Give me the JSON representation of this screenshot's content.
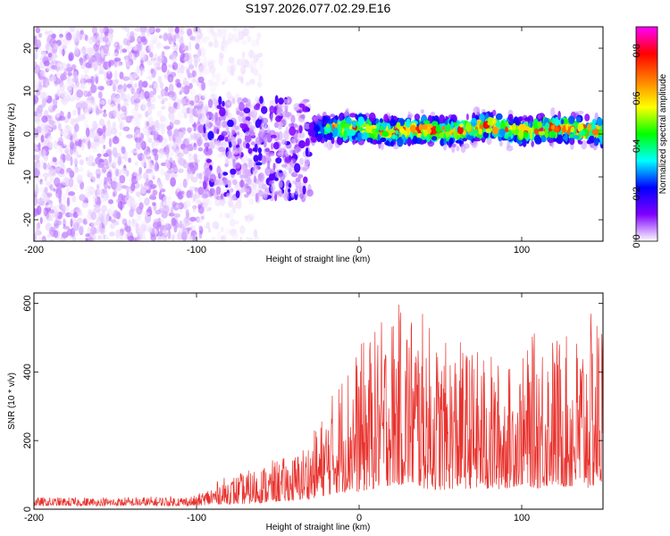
{
  "page": {
    "title": "S197.2026.077.02.29.E16"
  },
  "chart_data": [
    {
      "type": "heatmap",
      "xlabel": "Height of straight line (km)",
      "ylabel": "Frequency (Hz)",
      "xlim": [
        -200,
        150
      ],
      "ylim": [
        -25,
        25
      ],
      "xticks": [
        -200,
        -100,
        0,
        100
      ],
      "yticks": [
        -20,
        -10,
        0,
        10,
        20
      ],
      "colorbar": {
        "label": "Normalized spectral amplitude",
        "range": [
          0,
          0.9
        ],
        "ticks": [
          0.0,
          0.2,
          0.4,
          0.6,
          0.8
        ],
        "tick_labels": [
          "0.0",
          "0.2",
          "0.4",
          "0.6",
          "0.8"
        ],
        "colormap": [
          "#ffffff",
          "#7f00ff",
          "#0000ff",
          "#00ffff",
          "#00ff00",
          "#ffff00",
          "#ff8000",
          "#ff0000",
          "#ff00ff"
        ]
      },
      "features": [
        {
          "name": "noise-region",
          "x_range": [
            -200,
            -95
          ],
          "freq_range": [
            -25,
            25
          ],
          "amplitude": 0.05
        },
        {
          "name": "transition",
          "x_range": [
            -95,
            -30
          ],
          "freq_range": [
            -15,
            8
          ],
          "amplitude": 0.15
        },
        {
          "name": "signal-band",
          "x_range": [
            -30,
            150
          ],
          "center_freq": [
            [
              -30,
              1.0
            ],
            [
              0,
              1.5
            ],
            [
              20,
              0.5
            ],
            [
              40,
              1.0
            ],
            [
              60,
              0.5
            ],
            [
              80,
              2.0
            ],
            [
              100,
              0.5
            ],
            [
              120,
              1.5
            ],
            [
              150,
              0.5
            ]
          ],
          "halfwidth_hz": 3,
          "peak_amplitude": 0.85
        }
      ]
    },
    {
      "type": "line",
      "xlabel": "Height of straight line (km)",
      "ylabel": "SNR (10 * v/v)",
      "xlim": [
        -200,
        150
      ],
      "ylim": [
        0,
        630
      ],
      "xticks": [
        -200,
        -100,
        0,
        100
      ],
      "yticks": [
        0,
        200,
        400,
        600
      ],
      "series": [
        {
          "color": "#e8322d",
          "envelope": {
            "x": [
              -200,
              -150,
              -100,
              -85,
              -70,
              -55,
              -40,
              -30,
              -20,
              -10,
              0,
              10,
              20,
              30,
              40,
              50,
              60,
              70,
              80,
              90,
              100,
              110,
              120,
              130,
              140,
              150
            ],
            "min": [
              10,
              10,
              10,
              15,
              15,
              20,
              25,
              30,
              40,
              50,
              50,
              60,
              70,
              70,
              60,
              55,
              60,
              60,
              55,
              60,
              70,
              60,
              70,
              60,
              60,
              70
            ],
            "max": [
              35,
              35,
              40,
              90,
              110,
              140,
              160,
              210,
              300,
              420,
              480,
              530,
              590,
              610,
              570,
              480,
              500,
              470,
              460,
              420,
              440,
              540,
              520,
              500,
              560,
              600
            ]
          }
        }
      ]
    }
  ]
}
